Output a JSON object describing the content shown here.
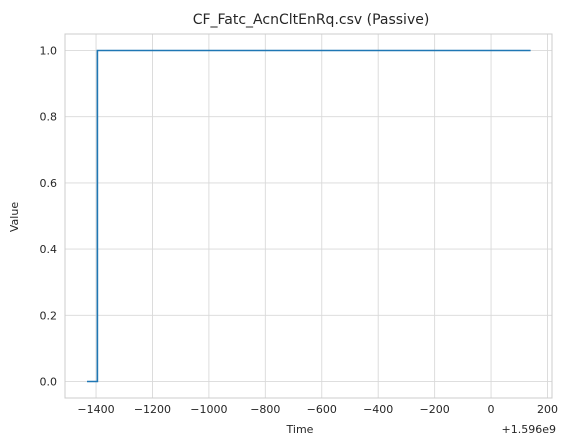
{
  "chart_data": {
    "type": "line",
    "title": "CF_Fatc_AcnCltEnRq.csv (Passive)",
    "xlabel": "Time",
    "ylabel": "Value",
    "x_offset_label": "+1.596e9",
    "xlim": [
      -1510,
      216
    ],
    "ylim": [
      -0.05,
      1.05
    ],
    "x_ticks": [
      -1400,
      -1200,
      -1000,
      -800,
      -600,
      -400,
      -200,
      0,
      200
    ],
    "x_tick_labels": [
      "−1400",
      "−1200",
      "−1000",
      "−800",
      "−600",
      "−400",
      "−200",
      "0",
      "200"
    ],
    "y_ticks": [
      0.0,
      0.2,
      0.4,
      0.6,
      0.8,
      1.0
    ],
    "y_tick_labels": [
      "0.0",
      "0.2",
      "0.4",
      "0.6",
      "0.8",
      "1.0"
    ],
    "grid": true,
    "series": [
      {
        "color": "#1f77b4",
        "x": [
          -1432,
          -1395,
          -1395,
          140
        ],
        "y": [
          0,
          0,
          1,
          1
        ]
      }
    ]
  }
}
